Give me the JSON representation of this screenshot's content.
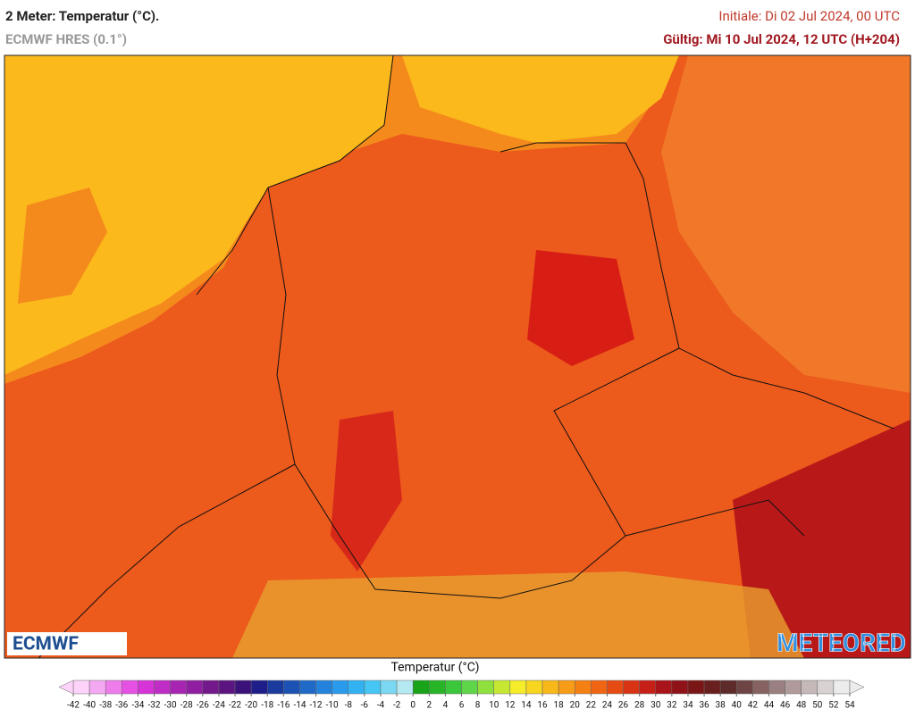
{
  "header": {
    "title": "2 Meter: Temperatur (°C).",
    "model": "ECMWF HRES (0.1°)",
    "init": "Initiale: Di 02 Jul 2024, 00 UTC",
    "valid": "Gültig: Mi 10 Jul 2024, 12 UTC (H+204)"
  },
  "map": {
    "logo_left": "ECMWF",
    "logo_right": "METEORED"
  },
  "colorbar": {
    "title": "Temperatur (°C)",
    "ticks": [
      -42,
      -40,
      -38,
      -36,
      -34,
      -32,
      -30,
      -28,
      -26,
      -24,
      -22,
      -20,
      -18,
      -16,
      -14,
      -12,
      -10,
      -8,
      -6,
      -4,
      -2,
      0,
      2,
      4,
      6,
      8,
      10,
      12,
      14,
      16,
      18,
      20,
      22,
      24,
      26,
      28,
      30,
      32,
      34,
      36,
      38,
      40,
      42,
      44,
      46,
      48,
      50,
      52,
      54
    ],
    "colors": [
      "#fdd3fa",
      "#f5a8f2",
      "#ee7ceb",
      "#e552e3",
      "#d634d8",
      "#c02cc6",
      "#a825b3",
      "#8f1fa0",
      "#73198c",
      "#5c1480",
      "#3a127a",
      "#1f1d8a",
      "#1a3a9e",
      "#1c52b4",
      "#1f6ac8",
      "#2383dc",
      "#2a9bec",
      "#33b2f3",
      "#46c6f5",
      "#7ad8f2",
      "#b5e9f2",
      "#18a318",
      "#27b527",
      "#3bc73b",
      "#5fd64a",
      "#8fe03c",
      "#c6e832",
      "#f5ec2a",
      "#f8d51e",
      "#f9b81a",
      "#f79c16",
      "#f48014",
      "#ef6514",
      "#e64b14",
      "#d83414",
      "#c61f18",
      "#a8141a",
      "#8e1218",
      "#7a1616",
      "#6a1f1f",
      "#5e2a2a",
      "#6e4444",
      "#866262",
      "#9a8080",
      "#b09a9a",
      "#c4b8b8",
      "#d8d2d2",
      "#ececec"
    ]
  }
}
